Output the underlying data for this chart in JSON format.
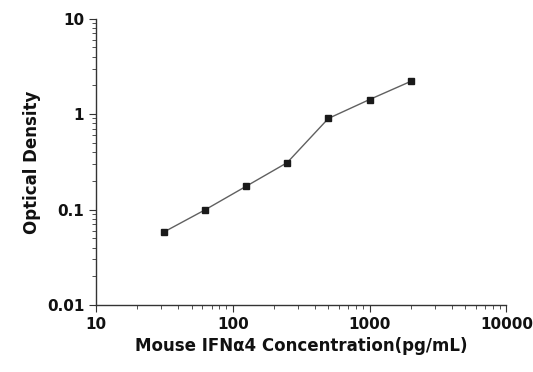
{
  "x_values": [
    31.25,
    62.5,
    125,
    250,
    500,
    1000,
    2000
  ],
  "y_values": [
    0.058,
    0.099,
    0.175,
    0.31,
    0.9,
    1.42,
    2.2
  ],
  "xlabel": "Mouse IFNα4 Concentration(pg/mL)",
  "ylabel": "Optical Density",
  "xlim": [
    10,
    10000
  ],
  "ylim": [
    0.01,
    10
  ],
  "x_ticks": [
    10,
    100,
    1000,
    10000
  ],
  "x_tick_labels": [
    "10",
    "100",
    "1000",
    "10000"
  ],
  "y_ticks": [
    0.01,
    0.1,
    1,
    10
  ],
  "y_tick_labels": [
    "0.01",
    "0.1",
    "1",
    "10"
  ],
  "line_color": "#606060",
  "marker_color": "#1a1a1a",
  "background_color": "#ffffff",
  "marker": "s",
  "marker_size": 5,
  "line_width": 1.0,
  "xlabel_fontsize": 12,
  "ylabel_fontsize": 12,
  "tick_fontsize": 11
}
